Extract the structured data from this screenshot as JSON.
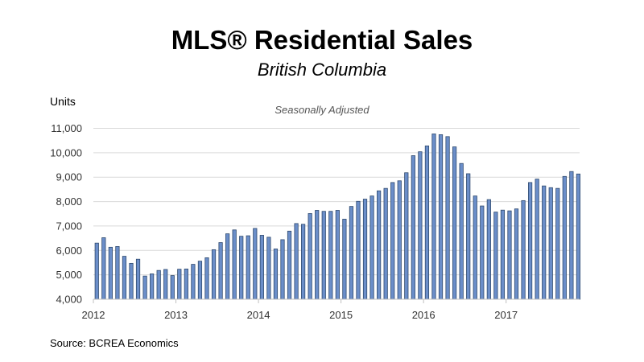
{
  "chart_data": {
    "type": "bar",
    "title": "MLS® Residential Sales",
    "subtitle": "British Columbia",
    "annotation": "Seasonally Adjusted",
    "ylabel": "Units",
    "source": "Source: BCREA Economics",
    "ylim": [
      4000,
      11000
    ],
    "yticks": [
      4000,
      5000,
      6000,
      7000,
      8000,
      9000,
      10000,
      11000
    ],
    "ytick_labels": [
      "4,000",
      "5,000",
      "6,000",
      "7,000",
      "8,000",
      "9,000",
      "10,000",
      "11,000"
    ],
    "x_year_labels": [
      "2012",
      "2013",
      "2014",
      "2015",
      "2016",
      "2017"
    ],
    "bars_per_year": 12,
    "grid": true,
    "bar_color": "#6b8ec9",
    "bar_edge_color": "#2f4a6e",
    "values": [
      6300,
      6520,
      6130,
      6160,
      5760,
      5470,
      5640,
      4950,
      5040,
      5180,
      5220,
      4970,
      5230,
      5240,
      5430,
      5560,
      5700,
      6030,
      6320,
      6680,
      6840,
      6580,
      6600,
      6900,
      6620,
      6540,
      6060,
      6440,
      6790,
      7100,
      7070,
      7510,
      7640,
      7600,
      7600,
      7640,
      7280,
      7800,
      8010,
      8100,
      8230,
      8440,
      8540,
      8780,
      8850,
      9180,
      9880,
      10040,
      10280,
      10770,
      10740,
      10660,
      10240,
      9560,
      9140,
      8230,
      7820,
      8080,
      7570,
      7650,
      7620,
      7700,
      8040,
      8780,
      8920,
      8640,
      8570,
      8540,
      9030,
      9230,
      9130
    ]
  }
}
